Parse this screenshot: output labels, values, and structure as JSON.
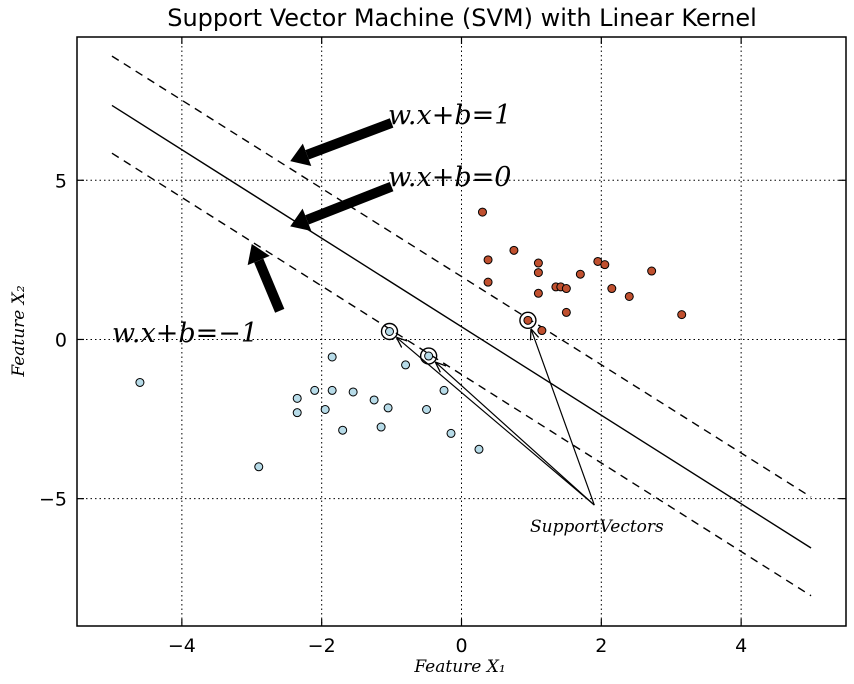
{
  "chart_data": {
    "type": "scatter",
    "title": "Support Vector Machine (SVM) with Linear Kernel",
    "xlabel": "Feature X₁",
    "ylabel": "Feature X₂",
    "xlim": [
      -5.5,
      5.5
    ],
    "ylim": [
      -9,
      9.5
    ],
    "xticks": [
      -4,
      -2,
      0,
      2,
      4
    ],
    "xtick_labels": [
      "−4",
      "−2",
      "0",
      "2",
      "4"
    ],
    "yticks": [
      -5,
      0,
      5
    ],
    "ytick_labels": [
      "−5",
      "0",
      "5"
    ],
    "grid": true,
    "series": [
      {
        "color": "#c0502f",
        "points": [
          [
            0.3,
            4.0
          ],
          [
            0.38,
            2.5
          ],
          [
            0.38,
            1.8
          ],
          [
            0.75,
            2.8
          ],
          [
            1.1,
            2.4
          ],
          [
            1.1,
            2.1
          ],
          [
            1.1,
            1.45
          ],
          [
            1.35,
            1.65
          ],
          [
            1.42,
            1.65
          ],
          [
            1.5,
            1.6
          ],
          [
            1.5,
            0.85
          ],
          [
            1.7,
            2.05
          ],
          [
            1.95,
            2.45
          ],
          [
            2.05,
            2.35
          ],
          [
            2.15,
            1.6
          ],
          [
            2.4,
            1.35
          ],
          [
            2.72,
            2.15
          ],
          [
            3.15,
            0.78
          ],
          [
            1.15,
            0.28
          ],
          [
            0.95,
            0.6
          ]
        ]
      },
      {
        "color": "#b7dbe8",
        "points": [
          [
            -4.6,
            -1.35
          ],
          [
            -2.9,
            -4.0
          ],
          [
            -2.35,
            -2.3
          ],
          [
            -2.35,
            -1.85
          ],
          [
            -2.1,
            -1.6
          ],
          [
            -1.95,
            -2.2
          ],
          [
            -1.85,
            -1.6
          ],
          [
            -1.85,
            -0.55
          ],
          [
            -1.7,
            -2.85
          ],
          [
            -1.55,
            -1.65
          ],
          [
            -1.25,
            -1.9
          ],
          [
            -1.15,
            -2.75
          ],
          [
            -1.05,
            -2.15
          ],
          [
            -0.8,
            -0.8
          ],
          [
            -0.5,
            -2.2
          ],
          [
            -0.25,
            -1.6
          ],
          [
            -0.15,
            -2.95
          ],
          [
            0.25,
            -3.45
          ],
          [
            -1.03,
            0.25
          ],
          [
            -0.47,
            -0.52
          ]
        ]
      }
    ],
    "support_vectors": [
      [
        -1.03,
        0.25
      ],
      [
        -0.47,
        -0.52
      ],
      [
        0.95,
        0.6
      ]
    ],
    "lines": [
      {
        "label": "w.x+b=0",
        "style": "solid",
        "x": [
          -5,
          5
        ],
        "y": [
          7.35,
          -6.55
        ]
      },
      {
        "label": "w.x+b=1",
        "style": "dashed",
        "x": [
          -5,
          5
        ],
        "y": [
          8.9,
          -4.95
        ]
      },
      {
        "label": "w.x+b=−1",
        "style": "dashed",
        "x": [
          -5,
          5
        ],
        "y": [
          5.85,
          -8.05
        ]
      }
    ],
    "annotations": [
      {
        "text": "w.x+b=1",
        "arrow_from": [
          -1.0,
          6.8
        ],
        "arrow_to": [
          -2.45,
          5.6
        ]
      },
      {
        "text": "w.x+b=0",
        "arrow_from": [
          -1.0,
          4.8
        ],
        "arrow_to": [
          -2.45,
          3.55
        ]
      },
      {
        "text": "w.x+b=−1",
        "arrow_from": [
          -2.6,
          0.9
        ],
        "arrow_to": [
          -3.0,
          3.0
        ]
      },
      {
        "text": "SupportVectors",
        "arrow_from": [
          1.9,
          -5.2
        ],
        "targets": [
          [
            -1.03,
            0.25
          ],
          [
            -0.47,
            -0.52
          ],
          [
            0.95,
            0.6
          ]
        ]
      }
    ]
  }
}
